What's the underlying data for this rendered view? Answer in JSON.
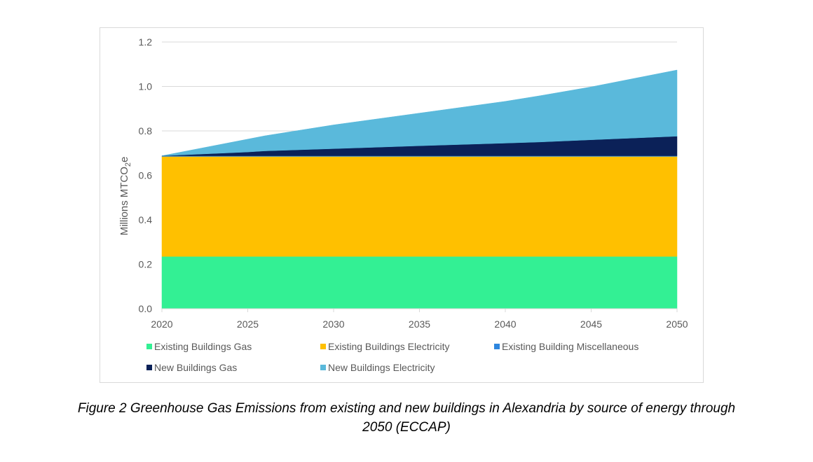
{
  "chart_data": {
    "type": "area",
    "stacked": true,
    "title": "",
    "xlabel": "",
    "ylabel": "Millions MTCO",
    "ylabel_subscript": "2",
    "ylabel_suffix": "e",
    "xlim": [
      2020,
      2050
    ],
    "ylim": [
      0,
      1.2
    ],
    "x_ticks": [
      "2020",
      "2025",
      "2030",
      "2035",
      "2040",
      "2045",
      "2050"
    ],
    "y_ticks": [
      "0.0",
      "0.2",
      "0.4",
      "0.6",
      "0.8",
      "1.0",
      "1.2"
    ],
    "grid": true,
    "legend_position": "bottom",
    "x": [
      2020,
      2025,
      2026,
      2030,
      2035,
      2040,
      2042,
      2045,
      2050
    ],
    "series": [
      {
        "name": "Existing Buildings Gas",
        "color": "#33f094",
        "values": [
          0.235,
          0.235,
          0.235,
          0.235,
          0.235,
          0.235,
          0.235,
          0.235,
          0.235
        ]
      },
      {
        "name": "Existing Buildings Electricity",
        "color": "#ffc000",
        "values": [
          0.45,
          0.45,
          0.45,
          0.45,
          0.45,
          0.45,
          0.45,
          0.45,
          0.45
        ]
      },
      {
        "name": "Existing Building Miscellaneous",
        "color": "#2e86de",
        "values": [
          0.003,
          0.003,
          0.003,
          0.003,
          0.003,
          0.003,
          0.003,
          0.003,
          0.003
        ]
      },
      {
        "name": "New Buildings Gas",
        "color": "#0b2158",
        "values": [
          0.0,
          0.017,
          0.022,
          0.032,
          0.045,
          0.057,
          0.062,
          0.072,
          0.088
        ]
      },
      {
        "name": "New Buildings Electricity",
        "color": "#5ab9db",
        "values": [
          0.0,
          0.058,
          0.068,
          0.107,
          0.147,
          0.188,
          0.208,
          0.238,
          0.298
        ]
      }
    ]
  },
  "caption": {
    "line1": "Figure 2 Greenhouse Gas Emissions from existing and new buildings in Alexandria by source of energy through",
    "line2": "2050 (ECCAP)"
  }
}
